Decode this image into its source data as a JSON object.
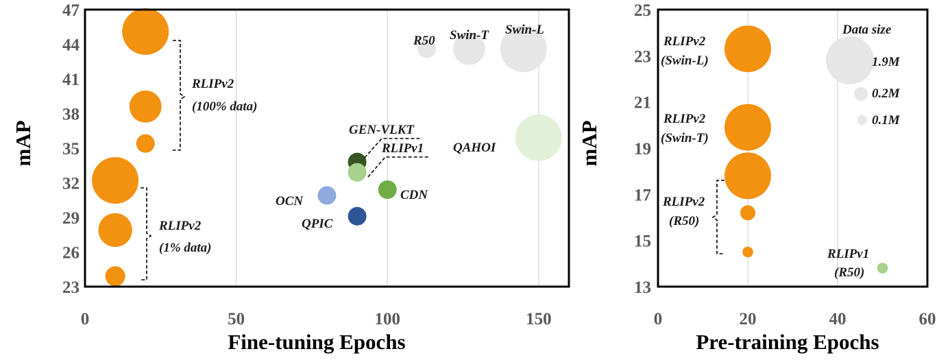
{
  "chart_data": [
    {
      "type": "scatter",
      "xlabel": "Fine-tuning Epochs",
      "ylabel": "mAP",
      "xlim": [
        0,
        160
      ],
      "ylim": [
        23,
        47
      ],
      "xticks": [
        0,
        50,
        100,
        150
      ],
      "yticks": [
        23,
        26,
        29,
        32,
        35,
        38,
        41,
        44,
        47
      ],
      "grid": "vertical",
      "points": [
        {
          "x": 20,
          "y": 45.1,
          "size": 1.9,
          "color": "#f39110"
        },
        {
          "x": 20,
          "y": 38.6,
          "size": 0.9,
          "color": "#f39110"
        },
        {
          "x": 20,
          "y": 35.4,
          "size": 0.3,
          "color": "#f39110"
        },
        {
          "x": 10,
          "y": 32.2,
          "size": 1.9,
          "color": "#f39110"
        },
        {
          "x": 10,
          "y": 27.9,
          "size": 1.0,
          "color": "#f39110"
        },
        {
          "x": 10,
          "y": 23.9,
          "size": 0.35,
          "color": "#f39110"
        },
        {
          "x": 90,
          "y": 33.8,
          "size": 0.3,
          "color": "#375623"
        },
        {
          "x": 90,
          "y": 32.9,
          "size": 0.3,
          "color": "#a9d18e"
        },
        {
          "x": 100,
          "y": 31.4,
          "size": 0.3,
          "color": "#70ad47"
        },
        {
          "x": 80,
          "y": 30.9,
          "size": 0.3,
          "color": "#8faadc"
        },
        {
          "x": 90,
          "y": 29.1,
          "size": 0.3,
          "color": "#2f5597"
        },
        {
          "x": 150,
          "y": 35.9,
          "size": 1.9,
          "color": "#e2f0d9"
        },
        {
          "x": 113,
          "y": 43.6,
          "size": 0.3,
          "color": "#e7e6e6"
        },
        {
          "x": 127,
          "y": 43.6,
          "size": 0.9,
          "color": "#e7e6e6"
        },
        {
          "x": 145,
          "y": 43.6,
          "size": 1.9,
          "color": "#e7e6e6"
        }
      ],
      "labels": {
        "rlipv2_100": [
          "RLIPv2",
          "(100% data)"
        ],
        "rlipv2_1": [
          "RLIPv2",
          "(1% data)"
        ],
        "gen_vlkt": "GEN-VLKT",
        "rlipv1": "RLIPv1",
        "cdn": "CDN",
        "ocn": "OCN",
        "qpic": "QPIC",
        "qahoi": "QAHOI",
        "r50": "R50",
        "swin_t": "Swin-T",
        "swin_l": "Swin-L"
      }
    },
    {
      "type": "scatter",
      "xlabel": "Pre-training Epochs",
      "ylabel": "mAP",
      "xlim": [
        0,
        60
      ],
      "ylim": [
        13,
        25
      ],
      "xticks": [
        0,
        20,
        40,
        60
      ],
      "yticks": [
        13,
        15,
        17,
        19,
        21,
        23,
        25
      ],
      "grid": "vertical",
      "points": [
        {
          "x": 20,
          "y": 23.3,
          "size": 1.9,
          "color": "#f39110"
        },
        {
          "x": 20,
          "y": 19.9,
          "size": 1.9,
          "color": "#f39110"
        },
        {
          "x": 20,
          "y": 17.8,
          "size": 1.9,
          "color": "#f39110"
        },
        {
          "x": 20,
          "y": 16.2,
          "size": 0.2,
          "color": "#f39110"
        },
        {
          "x": 20,
          "y": 14.5,
          "size": 0.1,
          "color": "#f39110"
        },
        {
          "x": 50,
          "y": 13.8,
          "size": 0.1,
          "color": "#a9d18e"
        }
      ],
      "legend": {
        "title": "Data size",
        "items": [
          {
            "label": "1.9M",
            "size": 1.9,
            "color": "#e7e6e6"
          },
          {
            "label": "0.2M",
            "size": 0.2,
            "color": "#e7e6e6"
          },
          {
            "label": "0.1M",
            "size": 0.1,
            "color": "#e7e6e6"
          }
        ]
      },
      "labels": {
        "swin_l": [
          "RLIPv2",
          "(Swin-L)"
        ],
        "swin_t": [
          "RLIPv2",
          "(Swin-T)"
        ],
        "r50": [
          "RLIPv2",
          "(R50)"
        ],
        "rlipv1": [
          "RLIPv1",
          "(R50)"
        ]
      }
    }
  ]
}
